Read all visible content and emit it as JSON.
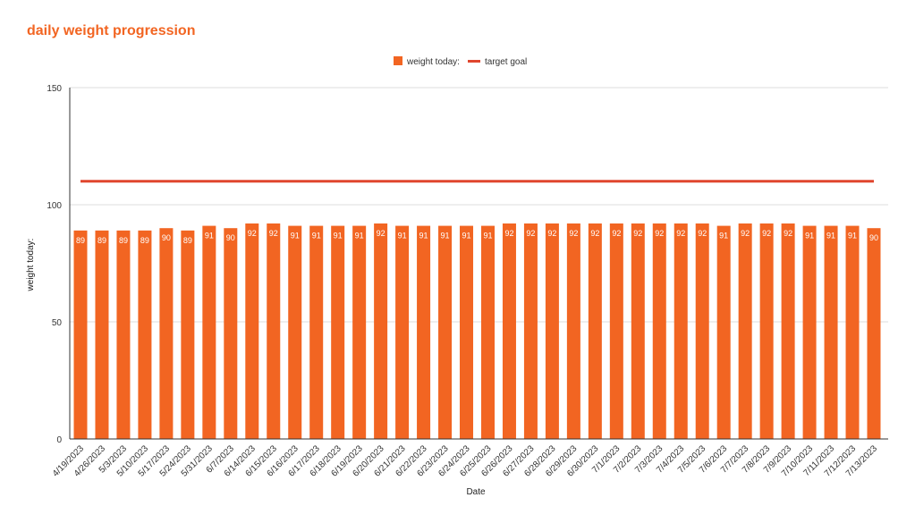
{
  "chart_data": {
    "type": "bar",
    "title": "daily weight progression",
    "xlabel": "Date",
    "ylabel": "weight today:",
    "ylim": [
      0,
      150
    ],
    "yticks": [
      0,
      50,
      100,
      150
    ],
    "legend_position": "top-center",
    "grid": true,
    "categories": [
      "4/19/2023",
      "4/26/2023",
      "5/3/2023",
      "5/10/2023",
      "5/17/2023",
      "5/24/2023",
      "5/31/2023",
      "6/7/2023",
      "6/14/2023",
      "6/15/2023",
      "6/16/2023",
      "6/17/2023",
      "6/18/2023",
      "6/19/2023",
      "6/20/2023",
      "6/21/2023",
      "6/22/2023",
      "6/23/2023",
      "6/24/2023",
      "6/25/2023",
      "6/26/2023",
      "6/27/2023",
      "6/28/2023",
      "6/29/2023",
      "6/30/2023",
      "7/1/2023",
      "7/2/2023",
      "7/3/2023",
      "7/4/2023",
      "7/5/2023",
      "7/6/2023",
      "7/7/2023",
      "7/8/2023",
      "7/9/2023",
      "7/10/2023",
      "7/11/2023",
      "7/12/2023",
      "7/13/2023"
    ],
    "series": [
      {
        "name": "weight today:",
        "kind": "bar",
        "color": "#F26522",
        "values": [
          89,
          89,
          89,
          89,
          90,
          89,
          91,
          90,
          92,
          92,
          91,
          91,
          91,
          91,
          92,
          91,
          91,
          91,
          91,
          91,
          92,
          92,
          92,
          92,
          92,
          92,
          92,
          92,
          92,
          92,
          91,
          92,
          92,
          92,
          91,
          91,
          91,
          90
        ]
      },
      {
        "name": "target goal",
        "kind": "line",
        "color": "#E0462E",
        "value": 110
      }
    ]
  }
}
